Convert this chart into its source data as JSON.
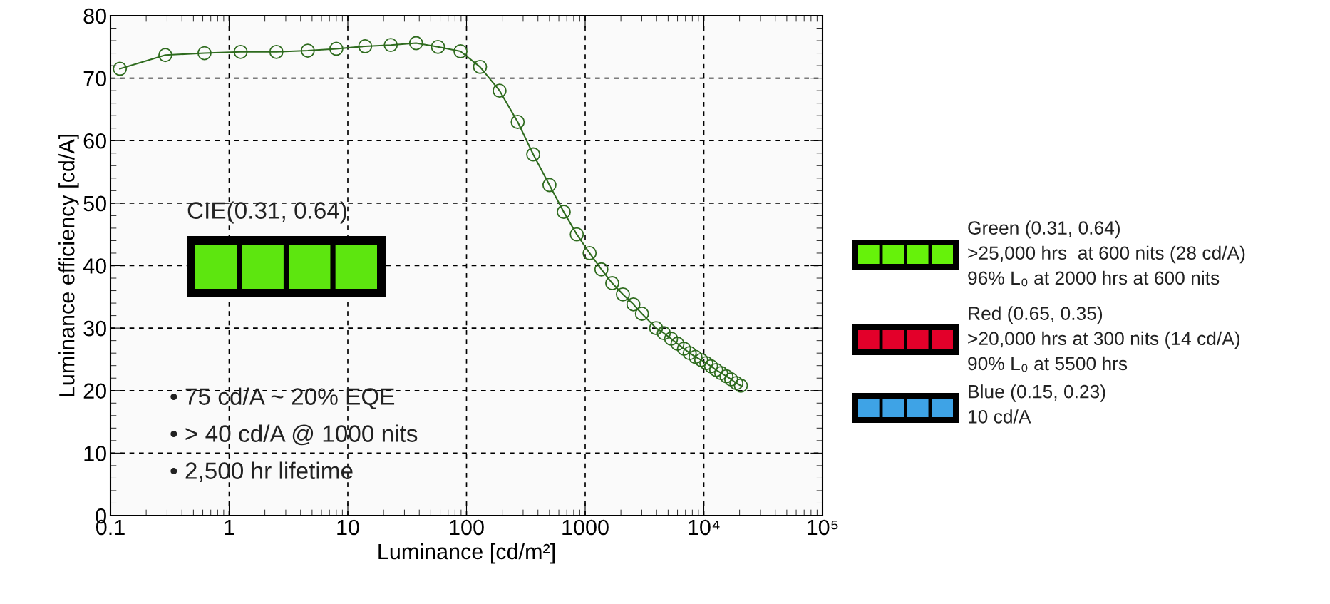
{
  "chart_data": {
    "type": "line",
    "xlabel": "Luminance [cd/m²]",
    "ylabel": "Luminance efficiency [cd/A]",
    "log": "x",
    "xlim": [
      0.1,
      100000
    ],
    "xticks": [
      0.1,
      1,
      10,
      100,
      1000,
      {
        "value": 10000,
        "label": "10⁴"
      },
      {
        "value": 100000,
        "label": "10⁵"
      }
    ],
    "ylim": [
      0,
      80
    ],
    "yticks": [
      0,
      10,
      20,
      30,
      40,
      50,
      60,
      70,
      80
    ],
    "grid": true,
    "marker": "circle",
    "line_style": "solid",
    "series": [
      {
        "color": "#2e6b1e",
        "x": [
          0.12,
          0.29,
          0.62,
          1.25,
          2.5,
          4.6,
          8,
          14,
          23,
          37.6,
          57.5,
          89,
          130,
          190,
          270,
          365,
          500,
          660,
          850,
          1090,
          1370,
          1690,
          2080,
          2550,
          3010,
          3960,
          4600,
          5300,
          6000,
          6800,
          7600,
          8500,
          9500,
          10500,
          11500,
          12700,
          14000,
          15500,
          17000,
          18800,
          20500
        ],
        "values": [
          71.5,
          73.7,
          74,
          74.2,
          74.2,
          74.4,
          74.7,
          75.1,
          75.3,
          75.6,
          75.0,
          74.3,
          71.8,
          68,
          63,
          57.8,
          52.9,
          48.6,
          45,
          42,
          39.4,
          37.2,
          35.4,
          33.8,
          32.3,
          30,
          29.2,
          28.3,
          27.5,
          26.7,
          26,
          25.4,
          24.9,
          24.4,
          23.9,
          23.3,
          22.8,
          22.3,
          21.8,
          21.2,
          20.8
        ]
      }
    ],
    "annotations": [
      "CIE(0.31, 0.64)",
      "• 75 cd/A ~ 20% EQE",
      "• > 40 cd/A @ 1000 nits",
      "• 2,500 hr lifetime",
      "Green (0.31, 0.64)\n>25,000 hrs  at 600 nits (28 cd/A)\n96% L₀ at 2000 hrs at 600 nits",
      "Red (0.65, 0.35)\n>20,000 hrs at 300 nits (14 cd/A)\n90% L₀ at 5500 hrs",
      "Blue (0.15, 0.23)\n10 cd/A"
    ]
  }
}
